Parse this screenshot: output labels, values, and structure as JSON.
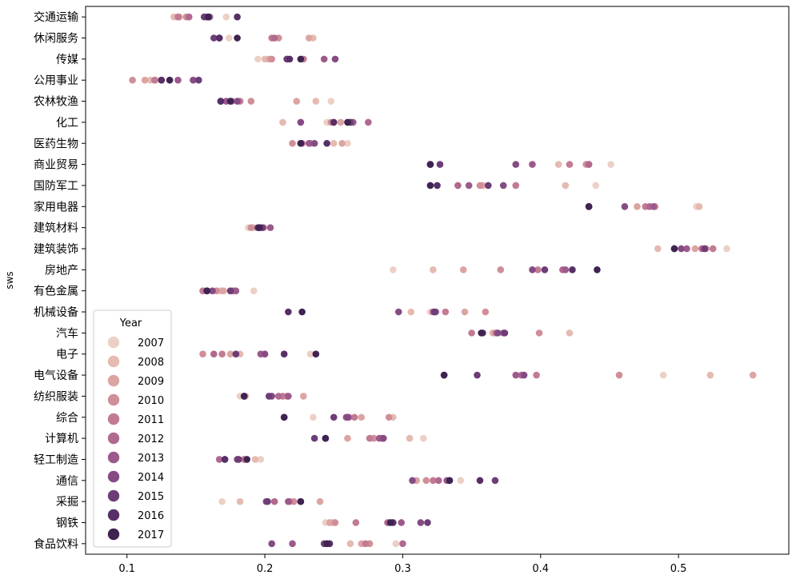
{
  "chart_data": {
    "type": "scatter",
    "title": "",
    "xlabel": "",
    "ylabel": "sws",
    "xlim": [
      0.07,
      0.58
    ],
    "xticks": [
      0.1,
      0.2,
      0.3,
      0.4,
      0.5
    ],
    "xtick_labels": [
      "0.1",
      "0.2",
      "0.3",
      "0.4",
      "0.5"
    ],
    "grid": false,
    "legend": {
      "title": "Year",
      "placement": "lower-left",
      "entries": [
        "2007",
        "2008",
        "2009",
        "2010",
        "2011",
        "2012",
        "2013",
        "2014",
        "2015",
        "2016",
        "2017"
      ]
    },
    "palette": [
      "#ecd0c6",
      "#e5bab1",
      "#dca5a2",
      "#d08f98",
      "#c27b93",
      "#b0698f",
      "#9c5a8c",
      "#854c84",
      "#6d3d77",
      "#562f66",
      "#3f2350"
    ],
    "categories": [
      "交通运输",
      "休闲服务",
      "传媒",
      "公用事业",
      "农林牧渔",
      "化工",
      "医药生物",
      "商业贸易",
      "国防军工",
      "家用电器",
      "建筑材料",
      "建筑装饰",
      "房地产",
      "有色金属",
      "机械设备",
      "汽车",
      "电子",
      "电气设备",
      "纺织服装",
      "综合",
      "计算机",
      "轻工制造",
      "通信",
      "采掘",
      "钢铁",
      "食品饮料"
    ],
    "values": [
      [
        0.172,
        0.134,
        0.138,
        0.143,
        0.137,
        0.145,
        0.16,
        0.158,
        0.156,
        0.18,
        0.159
      ],
      [
        0.174,
        0.235,
        0.232,
        0.21,
        0.205,
        0.207,
        0.167,
        0.167,
        0.163,
        0.167,
        0.18
      ],
      [
        0.195,
        0.2,
        0.203,
        0.205,
        0.228,
        0.216,
        0.243,
        0.251,
        0.216,
        0.218,
        0.226
      ],
      [
        0.121,
        0.117,
        0.113,
        0.104,
        0.12,
        0.125,
        0.137,
        0.148,
        0.152,
        0.125,
        0.131
      ],
      [
        0.248,
        0.237,
        0.223,
        0.19,
        0.182,
        0.176,
        0.172,
        0.18,
        0.168,
        0.168,
        0.175
      ],
      [
        0.245,
        0.213,
        0.255,
        0.248,
        0.262,
        0.275,
        0.264,
        0.226,
        0.262,
        0.25,
        0.26
      ],
      [
        0.26,
        0.25,
        0.256,
        0.22,
        0.233,
        0.227,
        0.232,
        0.236,
        0.226,
        0.245,
        0.226
      ],
      [
        0.451,
        0.413,
        0.435,
        0.433,
        0.421,
        0.435,
        0.394,
        0.382,
        0.327,
        0.32,
        0.32
      ],
      [
        0.44,
        0.418,
        0.358,
        0.356,
        0.382,
        0.34,
        0.348,
        0.373,
        0.362,
        0.325,
        0.32
      ],
      [
        0.513,
        0.515,
        0.47,
        0.483,
        0.476,
        0.479,
        0.482,
        0.461,
        0.435,
        0.435,
        0.435
      ],
      [
        0.188,
        0.192,
        0.196,
        0.19,
        0.196,
        0.199,
        0.204,
        0.196,
        0.198,
        0.195,
        0.196
      ],
      [
        0.535,
        0.485,
        0.512,
        0.52,
        0.525,
        0.517,
        0.506,
        0.502,
        0.519,
        0.497,
        0.497
      ],
      [
        0.293,
        0.322,
        0.344,
        0.371,
        0.398,
        0.416,
        0.418,
        0.394,
        0.403,
        0.423,
        0.441
      ],
      [
        0.192,
        0.168,
        0.17,
        0.165,
        0.155,
        0.177,
        0.179,
        0.162,
        0.175,
        0.158,
        0.158
      ],
      [
        0.32,
        0.306,
        0.345,
        0.36,
        0.331,
        0.322,
        0.324,
        0.297,
        0.323,
        0.217,
        0.227
      ],
      [
        0.365,
        0.421,
        0.366,
        0.399,
        0.35,
        0.368,
        0.373,
        0.369,
        0.374,
        0.358,
        0.357
      ],
      [
        0.233,
        0.182,
        0.175,
        0.155,
        0.169,
        0.163,
        0.197,
        0.2,
        0.179,
        0.214,
        0.237
      ],
      [
        0.489,
        0.523,
        0.554,
        0.457,
        0.397,
        0.386,
        0.382,
        0.388,
        0.354,
        0.33,
        0.33
      ],
      [
        0.182,
        0.186,
        0.228,
        0.216,
        0.213,
        0.21,
        0.217,
        0.205,
        0.203,
        0.185,
        0.185
      ],
      [
        0.235,
        0.293,
        0.27,
        0.29,
        0.265,
        0.261,
        0.259,
        0.26,
        0.25,
        0.214,
        0.214
      ],
      [
        0.315,
        0.305,
        0.26,
        0.279,
        0.276,
        0.285,
        0.283,
        0.286,
        0.236,
        0.244,
        0.244
      ],
      [
        0.197,
        0.193,
        0.18,
        0.185,
        0.185,
        0.167,
        0.171,
        0.18,
        0.181,
        0.171,
        0.187
      ],
      [
        0.342,
        0.334,
        0.31,
        0.317,
        0.322,
        0.326,
        0.332,
        0.307,
        0.367,
        0.356,
        0.334
      ],
      [
        0.169,
        0.182,
        0.24,
        0.221,
        0.218,
        0.207,
        0.217,
        0.201,
        0.202,
        0.226,
        0.226
      ],
      [
        0.244,
        0.249,
        0.247,
        0.251,
        0.266,
        0.289,
        0.299,
        0.313,
        0.318,
        0.293,
        0.291
      ],
      [
        0.295,
        0.262,
        0.27,
        0.276,
        0.273,
        0.3,
        0.22,
        0.205,
        0.243,
        0.247,
        0.245
      ]
    ]
  }
}
